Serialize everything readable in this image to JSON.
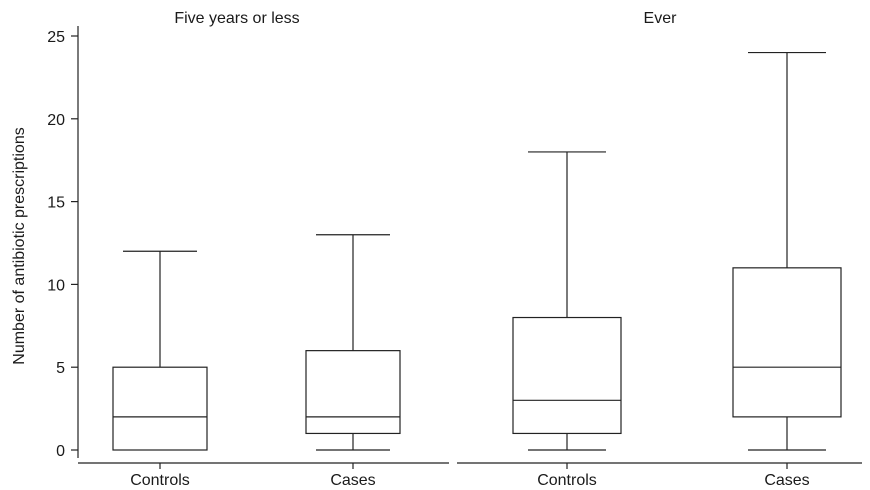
{
  "chart_data": {
    "type": "box",
    "ylabel": "Number of antibiotic prescriptions",
    "ylim": [
      0,
      25
    ],
    "yticks": [
      0,
      5,
      10,
      15,
      20,
      25
    ],
    "grid": false,
    "panels": [
      {
        "title": "Five years or less",
        "groups": [
          {
            "label": "Controls",
            "min": 0,
            "q1": 0,
            "median": 2,
            "q3": 5,
            "max": 12
          },
          {
            "label": "Cases",
            "min": 0,
            "q1": 1,
            "median": 2,
            "q3": 6,
            "max": 13
          }
        ]
      },
      {
        "title": "Ever",
        "groups": [
          {
            "label": "Controls",
            "min": 0,
            "q1": 1,
            "median": 3,
            "q3": 8,
            "max": 18
          },
          {
            "label": "Cases",
            "min": 0,
            "q1": 2,
            "median": 5,
            "q3": 11,
            "max": 24
          }
        ]
      }
    ]
  }
}
